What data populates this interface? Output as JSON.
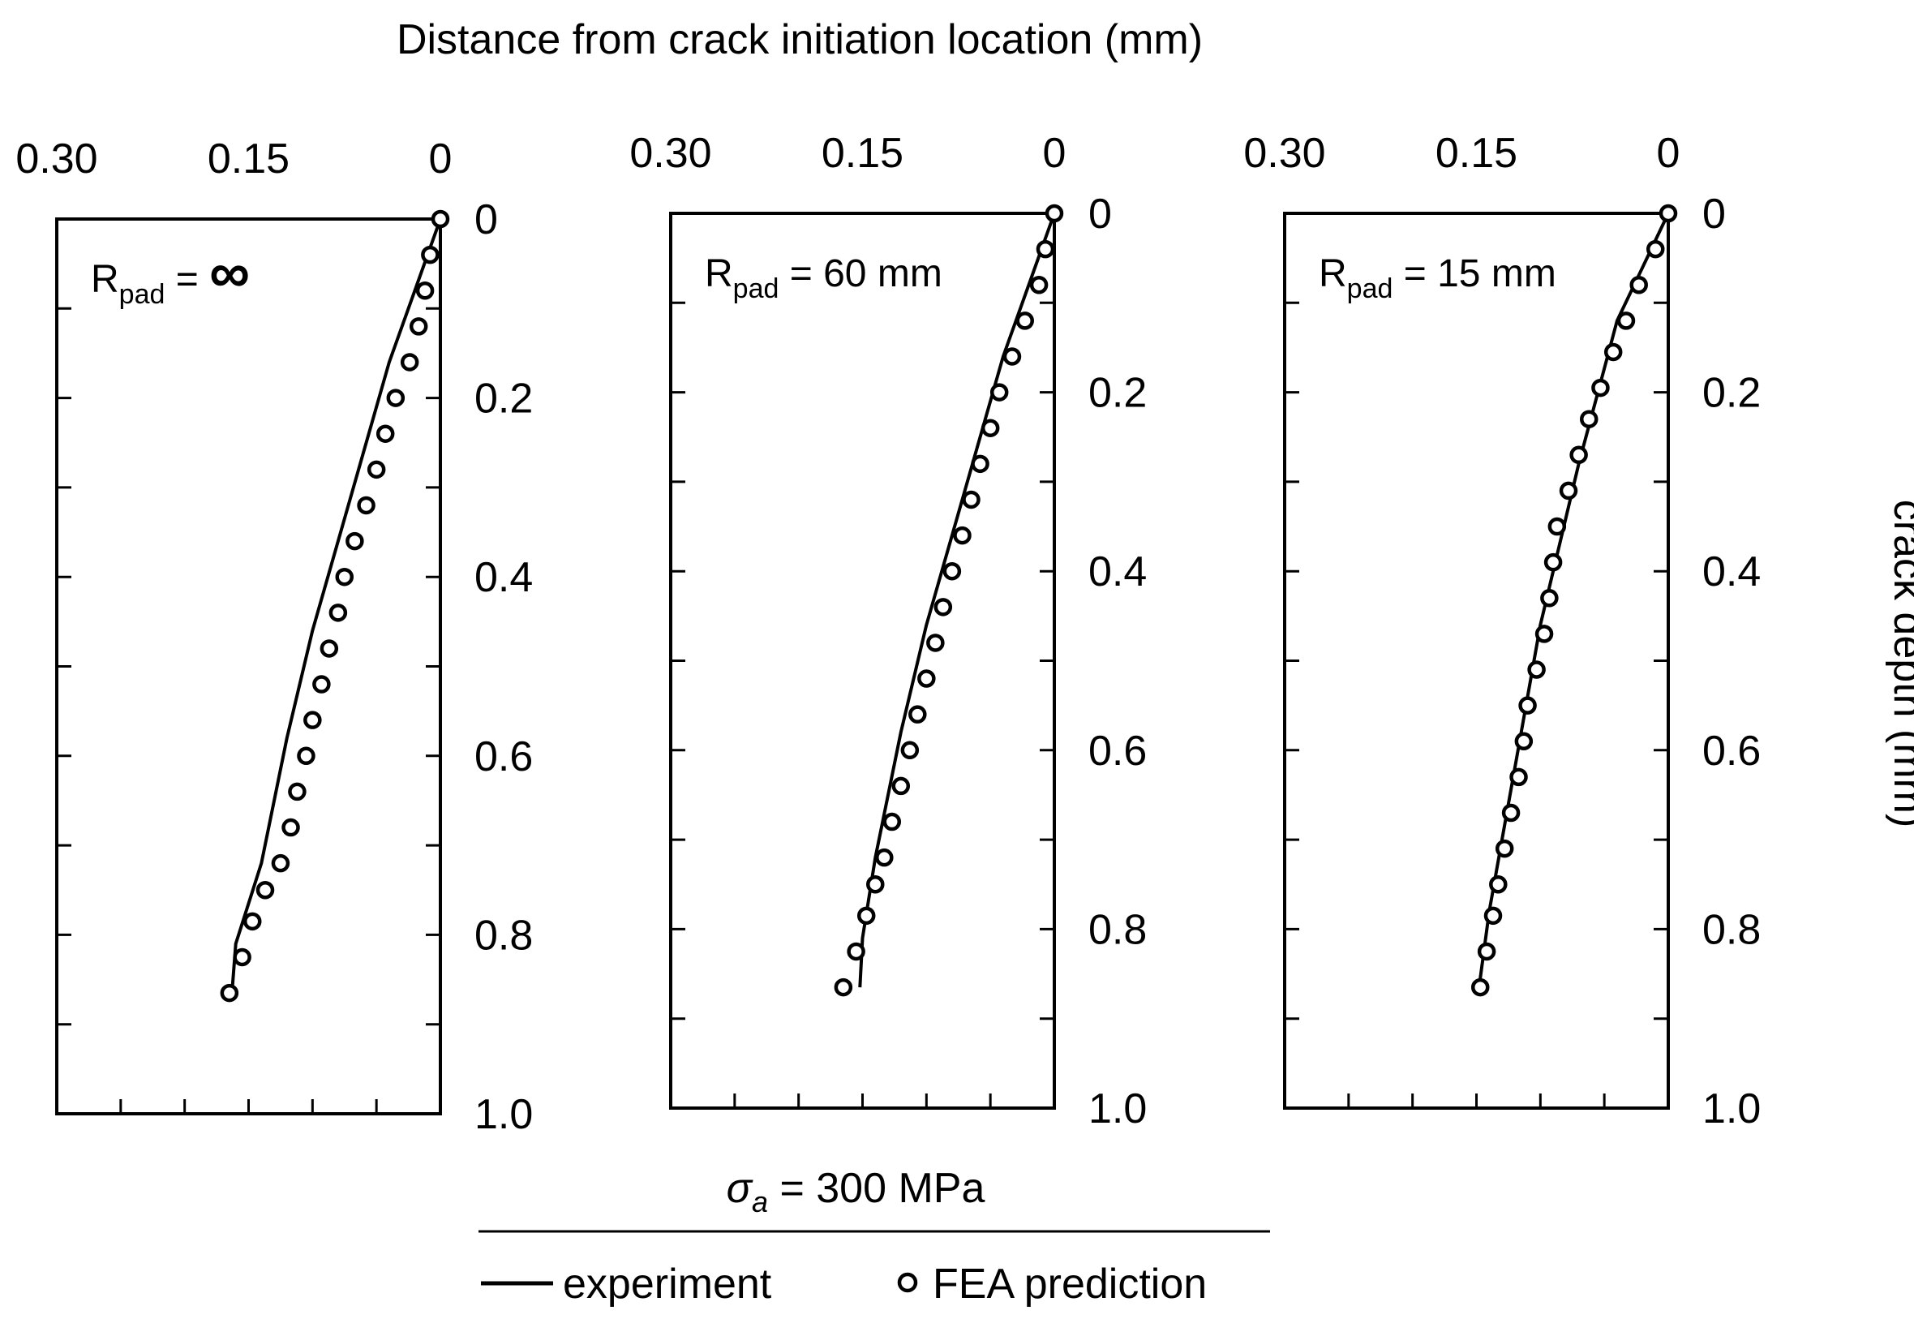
{
  "x_axis_title": "Distance from crack initiation location (mm)",
  "y_axis_title": "crack depth (mm)",
  "condition": {
    "symbol": "σ",
    "subscript": "a",
    "text": " = 300 MPa"
  },
  "legend": {
    "experiment_label": "experiment",
    "fea_label": "FEA prediction"
  },
  "chart_data": [
    {
      "type": "line",
      "panel_label": {
        "main": "R",
        "sub": "pad",
        "rest": " = ",
        "value": "∞"
      },
      "x_ticks": [
        "0.30",
        "0.15",
        "0"
      ],
      "y_ticks": [
        "0",
        "0.2",
        "0.4",
        "0.6",
        "0.8",
        "1.0"
      ],
      "xlim": [
        0.3,
        0
      ],
      "ylim": [
        0,
        1.0
      ],
      "series": [
        {
          "name": "experiment",
          "points": [
            [
              0.0,
              0.0
            ],
            [
              0.02,
              0.08
            ],
            [
              0.04,
              0.16
            ],
            [
              0.06,
              0.26
            ],
            [
              0.08,
              0.36
            ],
            [
              0.1,
              0.46
            ],
            [
              0.12,
              0.58
            ],
            [
              0.14,
              0.72
            ],
            [
              0.16,
              0.81
            ],
            [
              0.163,
              0.865
            ]
          ]
        },
        {
          "name": "FEA prediction",
          "points": [
            [
              0.0,
              0.0
            ],
            [
              0.008,
              0.04
            ],
            [
              0.012,
              0.08
            ],
            [
              0.017,
              0.12
            ],
            [
              0.024,
              0.16
            ],
            [
              0.035,
              0.2
            ],
            [
              0.043,
              0.24
            ],
            [
              0.05,
              0.28
            ],
            [
              0.058,
              0.32
            ],
            [
              0.067,
              0.36
            ],
            [
              0.075,
              0.4
            ],
            [
              0.08,
              0.44
            ],
            [
              0.087,
              0.48
            ],
            [
              0.093,
              0.52
            ],
            [
              0.1,
              0.56
            ],
            [
              0.105,
              0.6
            ],
            [
              0.112,
              0.64
            ],
            [
              0.117,
              0.68
            ],
            [
              0.125,
              0.72
            ],
            [
              0.137,
              0.75
            ],
            [
              0.147,
              0.785
            ],
            [
              0.155,
              0.825
            ],
            [
              0.165,
              0.865
            ]
          ]
        }
      ]
    },
    {
      "type": "line",
      "panel_label": {
        "main": "R",
        "sub": "pad",
        "rest": " = 60 mm",
        "value": ""
      },
      "x_ticks": [
        "0.30",
        "0.15",
        "0"
      ],
      "y_ticks": [
        "0",
        "0.2",
        "0.4",
        "0.6",
        "0.8",
        "1.0"
      ],
      "xlim": [
        0.3,
        0
      ],
      "ylim": [
        0,
        1.0
      ],
      "series": [
        {
          "name": "experiment",
          "points": [
            [
              0.0,
              0.0
            ],
            [
              0.02,
              0.08
            ],
            [
              0.04,
              0.16
            ],
            [
              0.06,
              0.26
            ],
            [
              0.08,
              0.36
            ],
            [
              0.1,
              0.46
            ],
            [
              0.12,
              0.58
            ],
            [
              0.14,
              0.72
            ],
            [
              0.15,
              0.81
            ],
            [
              0.152,
              0.865
            ]
          ]
        },
        {
          "name": "FEA prediction",
          "points": [
            [
              0.0,
              0.0
            ],
            [
              0.007,
              0.04
            ],
            [
              0.012,
              0.08
            ],
            [
              0.023,
              0.12
            ],
            [
              0.033,
              0.16
            ],
            [
              0.043,
              0.2
            ],
            [
              0.05,
              0.24
            ],
            [
              0.058,
              0.28
            ],
            [
              0.065,
              0.32
            ],
            [
              0.072,
              0.36
            ],
            [
              0.08,
              0.4
            ],
            [
              0.087,
              0.44
            ],
            [
              0.093,
              0.48
            ],
            [
              0.1,
              0.52
            ],
            [
              0.107,
              0.56
            ],
            [
              0.113,
              0.6
            ],
            [
              0.12,
              0.64
            ],
            [
              0.127,
              0.68
            ],
            [
              0.133,
              0.72
            ],
            [
              0.14,
              0.75
            ],
            [
              0.147,
              0.785
            ],
            [
              0.155,
              0.825
            ],
            [
              0.165,
              0.865
            ]
          ]
        }
      ]
    },
    {
      "type": "line",
      "panel_label": {
        "main": "R",
        "sub": "pad",
        "rest": " = 15 mm",
        "value": ""
      },
      "x_ticks": [
        "0.30",
        "0.15",
        "0"
      ],
      "y_ticks": [
        "0",
        "0.2",
        "0.4",
        "0.6",
        "0.8",
        "1.0"
      ],
      "xlim": [
        0.3,
        0
      ],
      "ylim": [
        0,
        1.0
      ],
      "series": [
        {
          "name": "experiment",
          "points": [
            [
              0.0,
              0.0
            ],
            [
              0.02,
              0.06
            ],
            [
              0.04,
              0.12
            ],
            [
              0.055,
              0.2
            ],
            [
              0.07,
              0.28
            ],
            [
              0.085,
              0.37
            ],
            [
              0.1,
              0.46
            ],
            [
              0.11,
              0.54
            ],
            [
              0.12,
              0.62
            ],
            [
              0.13,
              0.7
            ],
            [
              0.14,
              0.78
            ],
            [
              0.148,
              0.865
            ]
          ]
        },
        {
          "name": "FEA prediction",
          "points": [
            [
              0.0,
              0.0
            ],
            [
              0.01,
              0.04
            ],
            [
              0.023,
              0.08
            ],
            [
              0.033,
              0.12
            ],
            [
              0.043,
              0.155
            ],
            [
              0.053,
              0.195
            ],
            [
              0.062,
              0.23
            ],
            [
              0.07,
              0.27
            ],
            [
              0.078,
              0.31
            ],
            [
              0.087,
              0.35
            ],
            [
              0.09,
              0.39
            ],
            [
              0.093,
              0.43
            ],
            [
              0.097,
              0.47
            ],
            [
              0.103,
              0.51
            ],
            [
              0.11,
              0.55
            ],
            [
              0.113,
              0.59
            ],
            [
              0.117,
              0.63
            ],
            [
              0.123,
              0.67
            ],
            [
              0.128,
              0.71
            ],
            [
              0.133,
              0.75
            ],
            [
              0.137,
              0.785
            ],
            [
              0.142,
              0.825
            ],
            [
              0.147,
              0.865
            ]
          ]
        }
      ]
    }
  ]
}
